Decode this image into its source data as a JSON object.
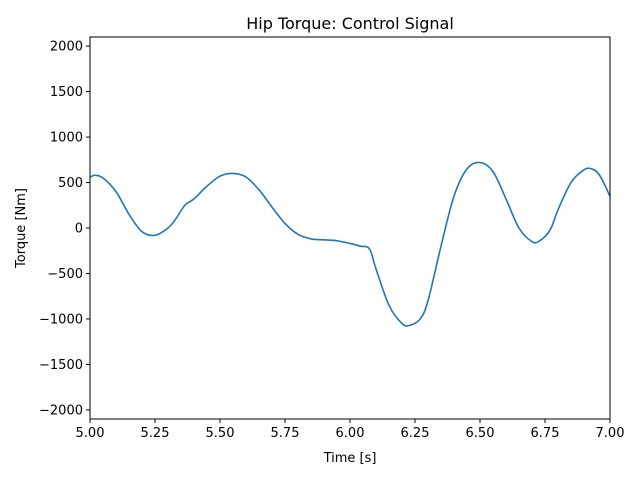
{
  "chart_data": {
    "type": "line",
    "title": "Hip Torque: Control Signal",
    "xlabel": "Time [s]",
    "ylabel": "Torque [Nm]",
    "xlim": [
      5.0,
      7.0
    ],
    "ylim": [
      -2100,
      2100
    ],
    "grid": false,
    "x_ticks": [
      5.0,
      5.25,
      5.5,
      5.75,
      6.0,
      6.25,
      6.5,
      6.75,
      7.0
    ],
    "x_tick_labels": [
      "5.00",
      "5.25",
      "5.50",
      "5.75",
      "6.00",
      "6.25",
      "6.50",
      "6.75",
      "7.00"
    ],
    "y_ticks": [
      -2000,
      -1500,
      -1000,
      -500,
      0,
      500,
      1000,
      1500,
      2000
    ],
    "y_tick_labels": [
      "−2000",
      "−1500",
      "−1000",
      "−500",
      "0",
      "500",
      "1000",
      "1500",
      "2000"
    ],
    "series": [
      {
        "color": "#1f77b4",
        "x": [
          5.0,
          5.02,
          5.05,
          5.1,
          5.15,
          5.2,
          5.25,
          5.3,
          5.33,
          5.365,
          5.4,
          5.45,
          5.5,
          5.55,
          5.6,
          5.65,
          5.7,
          5.75,
          5.8,
          5.85,
          5.9,
          5.95,
          6.0,
          6.04,
          6.075,
          6.1,
          6.15,
          6.2,
          6.23,
          6.27,
          6.3,
          6.35,
          6.4,
          6.45,
          6.5,
          6.55,
          6.6,
          6.65,
          6.7,
          6.73,
          6.77,
          6.8,
          6.85,
          6.9,
          6.93,
          6.96,
          7.0
        ],
        "y": [
          560,
          580,
          550,
          400,
          150,
          -40,
          -80,
          0,
          100,
          250,
          320,
          460,
          570,
          600,
          560,
          420,
          230,
          50,
          -70,
          -120,
          -130,
          -140,
          -170,
          -200,
          -230,
          -450,
          -850,
          -1050,
          -1070,
          -1000,
          -800,
          -200,
          350,
          650,
          720,
          620,
          320,
          0,
          -150,
          -140,
          -20,
          200,
          500,
          640,
          650,
          580,
          350
        ]
      }
    ]
  }
}
